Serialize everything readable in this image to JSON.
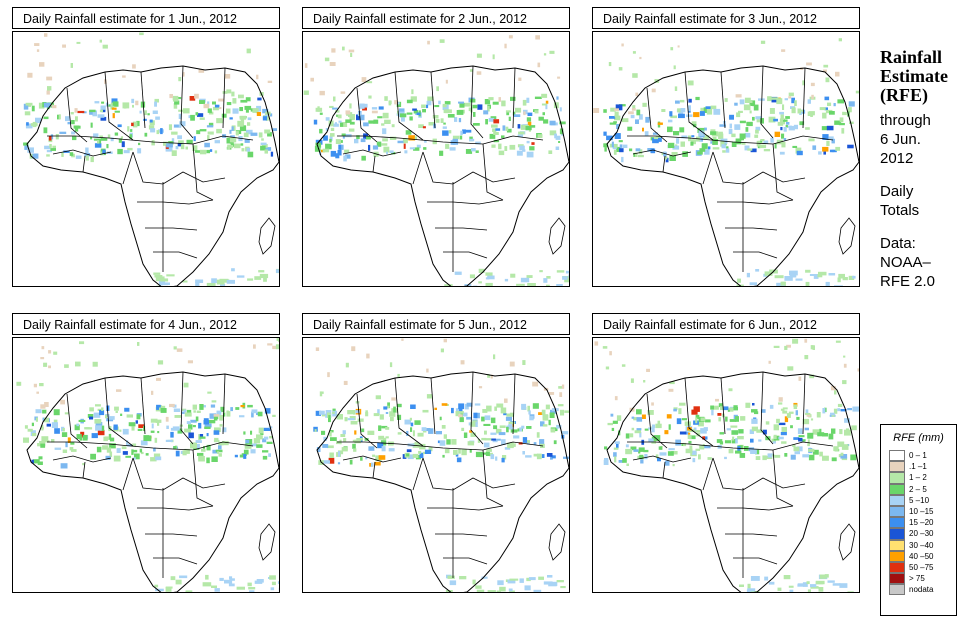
{
  "panels": [
    {
      "title": "Daily Rainfall estimate for  1 Jun., 2012",
      "day": 1
    },
    {
      "title": "Daily Rainfall estimate for  2 Jun., 2012",
      "day": 2
    },
    {
      "title": "Daily Rainfall estimate for  3 Jun., 2012",
      "day": 3
    },
    {
      "title": "Daily Rainfall estimate for  4 Jun., 2012",
      "day": 4
    },
    {
      "title": "Daily Rainfall estimate for  5 Jun., 2012",
      "day": 5
    },
    {
      "title": "Daily Rainfall estimate for  6 Jun., 2012",
      "day": 6
    }
  ],
  "side": {
    "title_line1": "Rainfall",
    "title_line2": "Estimate",
    "title_line3": "(RFE)",
    "through_line1": "through",
    "through_line2": "6 Jun.",
    "through_line3": "2012",
    "totals_line1": "Daily",
    "totals_line2": "Totals",
    "data_line1": "Data:",
    "data_line2": "NOAA–",
    "data_line3": "RFE 2.0"
  },
  "legend": {
    "title": "RFE (mm)",
    "items": [
      {
        "label": "0 – 1",
        "color": "#ffffff"
      },
      {
        "label": ".1 –1",
        "color": "#e8d3bd"
      },
      {
        "label": "1 – 2",
        "color": "#b5e8a8"
      },
      {
        "label": "2 – 5",
        "color": "#6ad66a"
      },
      {
        "label": "5 –10",
        "color": "#a8d3f5"
      },
      {
        "label": "10 –15",
        "color": "#7cb8f0"
      },
      {
        "label": "15 –20",
        "color": "#3c8ff0"
      },
      {
        "label": "20 –30",
        "color": "#1a55d6"
      },
      {
        "label": "30 –40",
        "color": "#ffe070"
      },
      {
        "label": "40 –50",
        "color": "#ffa000"
      },
      {
        "label": "50 –75",
        "color": "#e03010"
      },
      {
        "label": "> 75",
        "color": "#a01010"
      },
      {
        "label": "nodata",
        "color": "#c8c8c8"
      }
    ]
  }
}
